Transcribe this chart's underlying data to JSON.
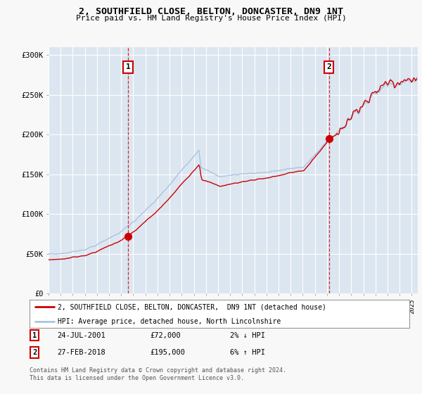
{
  "title": "2, SOUTHFIELD CLOSE, BELTON, DONCASTER, DN9 1NT",
  "subtitle": "Price paid vs. HM Land Registry's House Price Index (HPI)",
  "property_label": "2, SOUTHFIELD CLOSE, BELTON, DONCASTER,  DN9 1NT (detached house)",
  "hpi_label": "HPI: Average price, detached house, North Lincolnshire",
  "transaction1": {
    "date": "24-JUL-2001",
    "price": 72000,
    "hpi_diff": "2% ↓ HPI"
  },
  "transaction2": {
    "date": "27-FEB-2018",
    "price": 195000,
    "hpi_diff": "6% ↑ HPI"
  },
  "t1_year": 2001.56,
  "t2_year": 2018.16,
  "background_color": "#dce6f1",
  "line_color_property": "#cc0000",
  "line_color_hpi": "#aac4e0",
  "vline_color": "#cc0000",
  "marker_color": "#cc0000",
  "x_start_year": 1995,
  "x_end_year": 2025,
  "ylim": [
    0,
    310000
  ],
  "yticks": [
    0,
    50000,
    100000,
    150000,
    200000,
    250000,
    300000
  ],
  "ytick_labels": [
    "£0",
    "£50K",
    "£100K",
    "£150K",
    "£200K",
    "£250K",
    "£300K"
  ],
  "footer": "Contains HM Land Registry data © Crown copyright and database right 2024.\nThis data is licensed under the Open Government Licence v3.0.",
  "grid_color": "#ffffff",
  "box_color": "#cc0000",
  "fig_bg": "#f0f0f0"
}
